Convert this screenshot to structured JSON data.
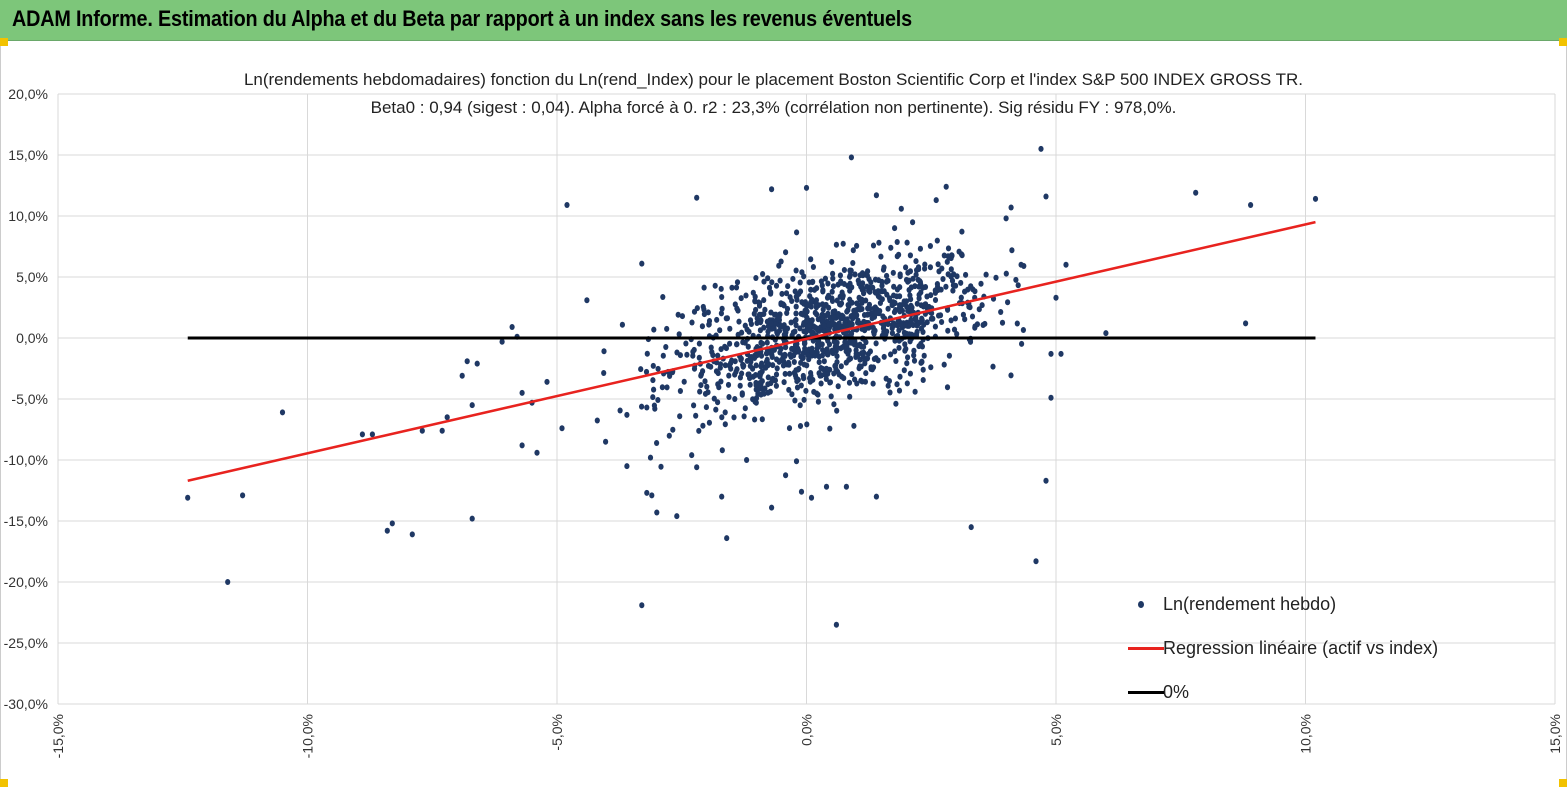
{
  "header": {
    "title": "ADAM Informe. Estimation du Alpha et du Beta par rapport à un index sans les revenus éventuels"
  },
  "chart_data": {
    "type": "scatter",
    "title_line1": "Ln(rendements hebdomadaires) fonction du Ln(rend_Index) pour le placement Boston Scientific Corp et l'index S&P 500 INDEX GROSS TR.",
    "title_line2": "Beta0 : 0,94 (sigest : 0,04). Alpha forcé à 0. r2 : 23,3% (corrélation non pertinente). Sig résidu FY : 978,0%.",
    "xlim": [
      -15,
      15
    ],
    "ylim": [
      -30,
      20
    ],
    "x_ticks": [
      "-15,0%",
      "-10,0%",
      "-5,0%",
      "0,0%",
      "5,0%",
      "10,0%",
      "15,0%"
    ],
    "y_ticks": [
      "20,0%",
      "15,0%",
      "10,0%",
      "5,0%",
      "0,0%",
      "-5,0%",
      "-10,0%",
      "-15,0%",
      "-20,0%",
      "-25,0%",
      "-30,0%"
    ],
    "grid": true,
    "legend_position": "bottom-right",
    "series": [
      {
        "name": "Ln(rendement hebdo)",
        "kind": "scatter",
        "color": "#1f3864",
        "outliers": [
          [
            -12.4,
            -13.1
          ],
          [
            -11.3,
            -12.9
          ],
          [
            -11.6,
            -20.0
          ],
          [
            -10.5,
            -6.1
          ],
          [
            -8.9,
            -7.9
          ],
          [
            -8.7,
            -7.9
          ],
          [
            -8.4,
            -15.8
          ],
          [
            -8.3,
            -15.2
          ],
          [
            -7.9,
            -16.1
          ],
          [
            -7.7,
            -7.6
          ],
          [
            -7.2,
            -6.5
          ],
          [
            -7.3,
            -7.6
          ],
          [
            -6.9,
            -3.1
          ],
          [
            -6.8,
            -1.9
          ],
          [
            -6.7,
            -5.5
          ],
          [
            -6.6,
            -2.1
          ],
          [
            -6.7,
            -14.8
          ],
          [
            -6.1,
            -0.3
          ],
          [
            -5.9,
            0.9
          ],
          [
            -5.8,
            0.1
          ],
          [
            -5.7,
            -4.5
          ],
          [
            -5.7,
            -8.8
          ],
          [
            -5.5,
            -5.3
          ],
          [
            -5.4,
            -9.4
          ],
          [
            -5.2,
            -3.6
          ],
          [
            -4.8,
            10.9
          ],
          [
            -4.9,
            -7.4
          ],
          [
            -4.4,
            3.1
          ],
          [
            -3.6,
            -10.5
          ],
          [
            -3.3,
            6.1
          ],
          [
            -3.3,
            -21.9
          ],
          [
            -3.2,
            -12.7
          ],
          [
            -3.1,
            -12.9
          ],
          [
            -3.0,
            -14.3
          ],
          [
            -2.6,
            -14.6
          ],
          [
            -2.2,
            11.5
          ],
          [
            -1.7,
            -13.0
          ],
          [
            -1.6,
            -16.4
          ],
          [
            -0.7,
            12.2
          ],
          [
            -0.7,
            -13.9
          ],
          [
            0.0,
            12.3
          ],
          [
            0.9,
            14.8
          ],
          [
            0.6,
            -23.5
          ],
          [
            1.4,
            11.7
          ],
          [
            1.9,
            10.6
          ],
          [
            2.6,
            11.3
          ],
          [
            2.8,
            12.4
          ],
          [
            3.3,
            -15.5
          ],
          [
            4.1,
            10.7
          ],
          [
            4.7,
            15.5
          ],
          [
            4.8,
            11.6
          ],
          [
            4.6,
            -18.3
          ],
          [
            4.8,
            -11.7
          ],
          [
            4.9,
            -4.9
          ],
          [
            5.0,
            3.3
          ],
          [
            5.2,
            6.0
          ],
          [
            6.0,
            0.4
          ],
          [
            7.8,
            11.9
          ],
          [
            8.8,
            1.2
          ],
          [
            8.9,
            10.9
          ],
          [
            10.2,
            11.4
          ],
          [
            4.9,
            -1.3
          ],
          [
            5.1,
            -1.3
          ],
          [
            4.3,
            6.0
          ],
          [
            4.0,
            9.8
          ],
          [
            3.6,
            5.2
          ],
          [
            -2.3,
            -9.6
          ],
          [
            -2.2,
            -10.6
          ],
          [
            -1.2,
            -10.0
          ],
          [
            -0.2,
            -10.1
          ],
          [
            0.4,
            -12.2
          ],
          [
            -0.1,
            -12.6
          ],
          [
            0.8,
            -12.2
          ],
          [
            1.4,
            -13.0
          ],
          [
            0.1,
            -13.1
          ],
          [
            -3.6,
            -6.3
          ],
          [
            -3.2,
            -5.7
          ]
        ],
        "cloud": {
          "count": 1180,
          "x_mean": 0.5,
          "x_sd": 1.6,
          "noise_sd": 2.7
        }
      },
      {
        "name": "Regression linéaire (actif vs index)",
        "kind": "line",
        "color": "#e8231f",
        "points": [
          [
            -12.4,
            -11.7
          ],
          [
            10.2,
            9.5
          ]
        ]
      },
      {
        "name": "0%",
        "kind": "line",
        "color": "#000000",
        "points": [
          [
            -12.4,
            0.0
          ],
          [
            10.2,
            0.0
          ]
        ]
      }
    ]
  }
}
